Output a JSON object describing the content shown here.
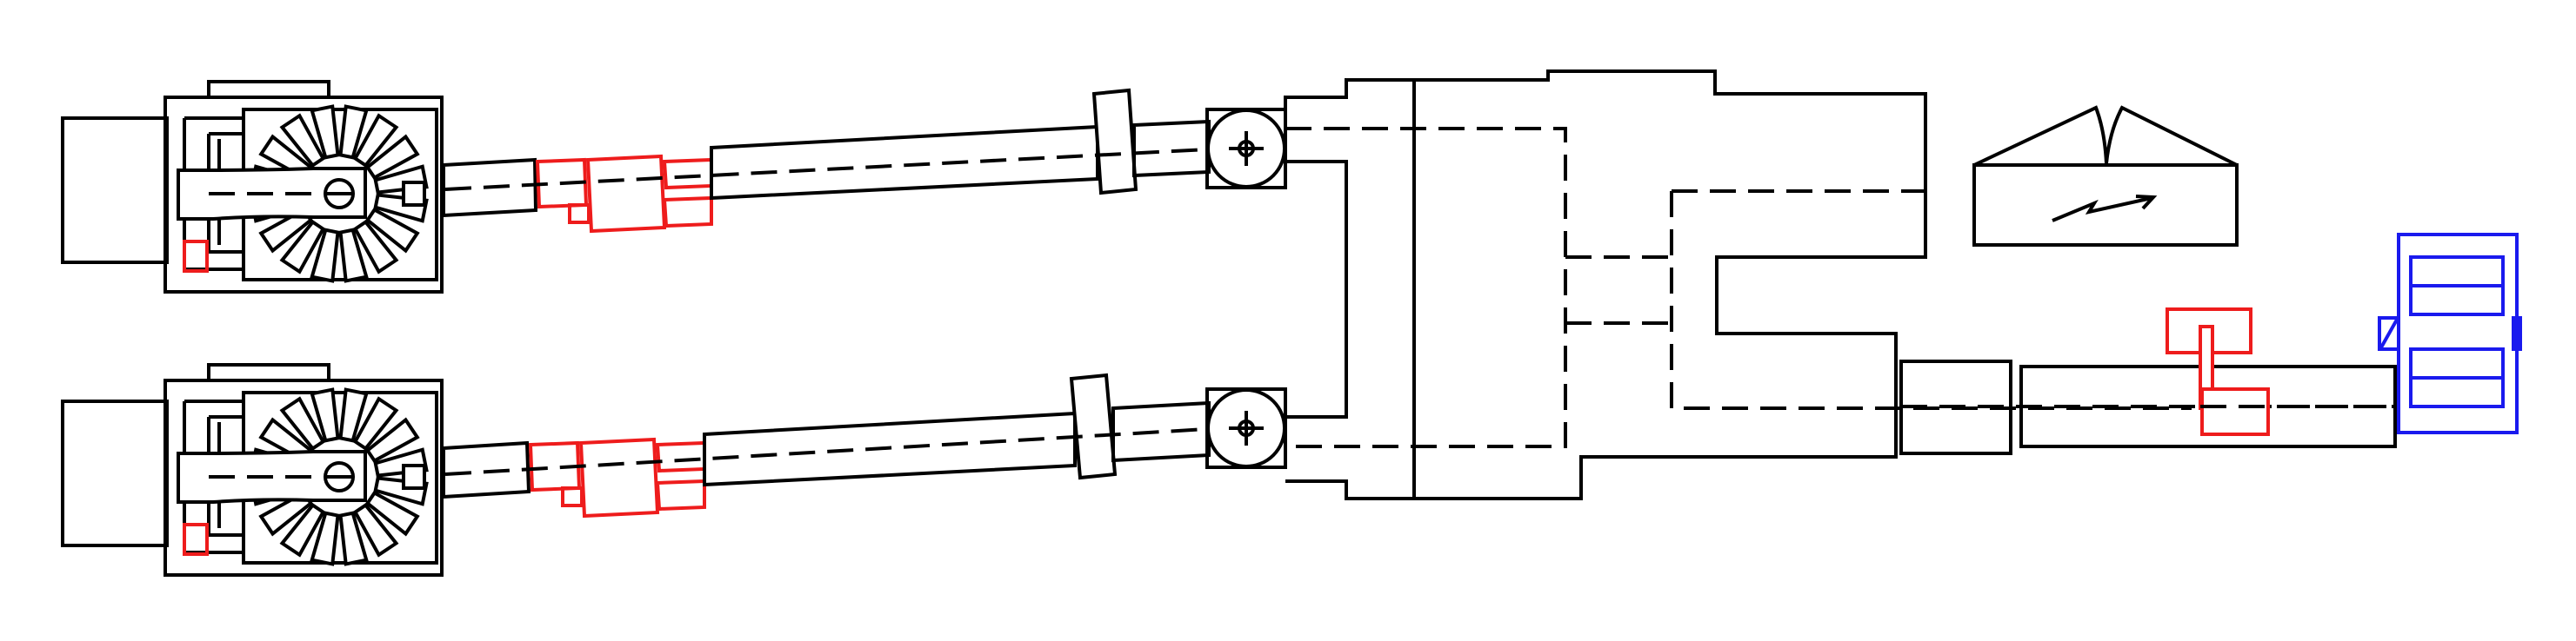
{
  "diagram": {
    "kind": "schematic drawing",
    "text_labels": [],
    "colors": {
      "line": "#000000",
      "highlight_red": "#ee1c1c",
      "highlight_blue": "#1a1aee",
      "background": "#ffffff"
    },
    "components": {
      "power_units": 2,
      "fans_per_unit": 1,
      "fan_blades": 16,
      "shaft_lines": 2,
      "couplings_red": 2,
      "pivot_joints": 2,
      "gearbox": 1,
      "control_box_icon": "lightning-arrow",
      "output_shaft": 1,
      "output_coupling_red": 1,
      "motor_blue": 1
    }
  }
}
